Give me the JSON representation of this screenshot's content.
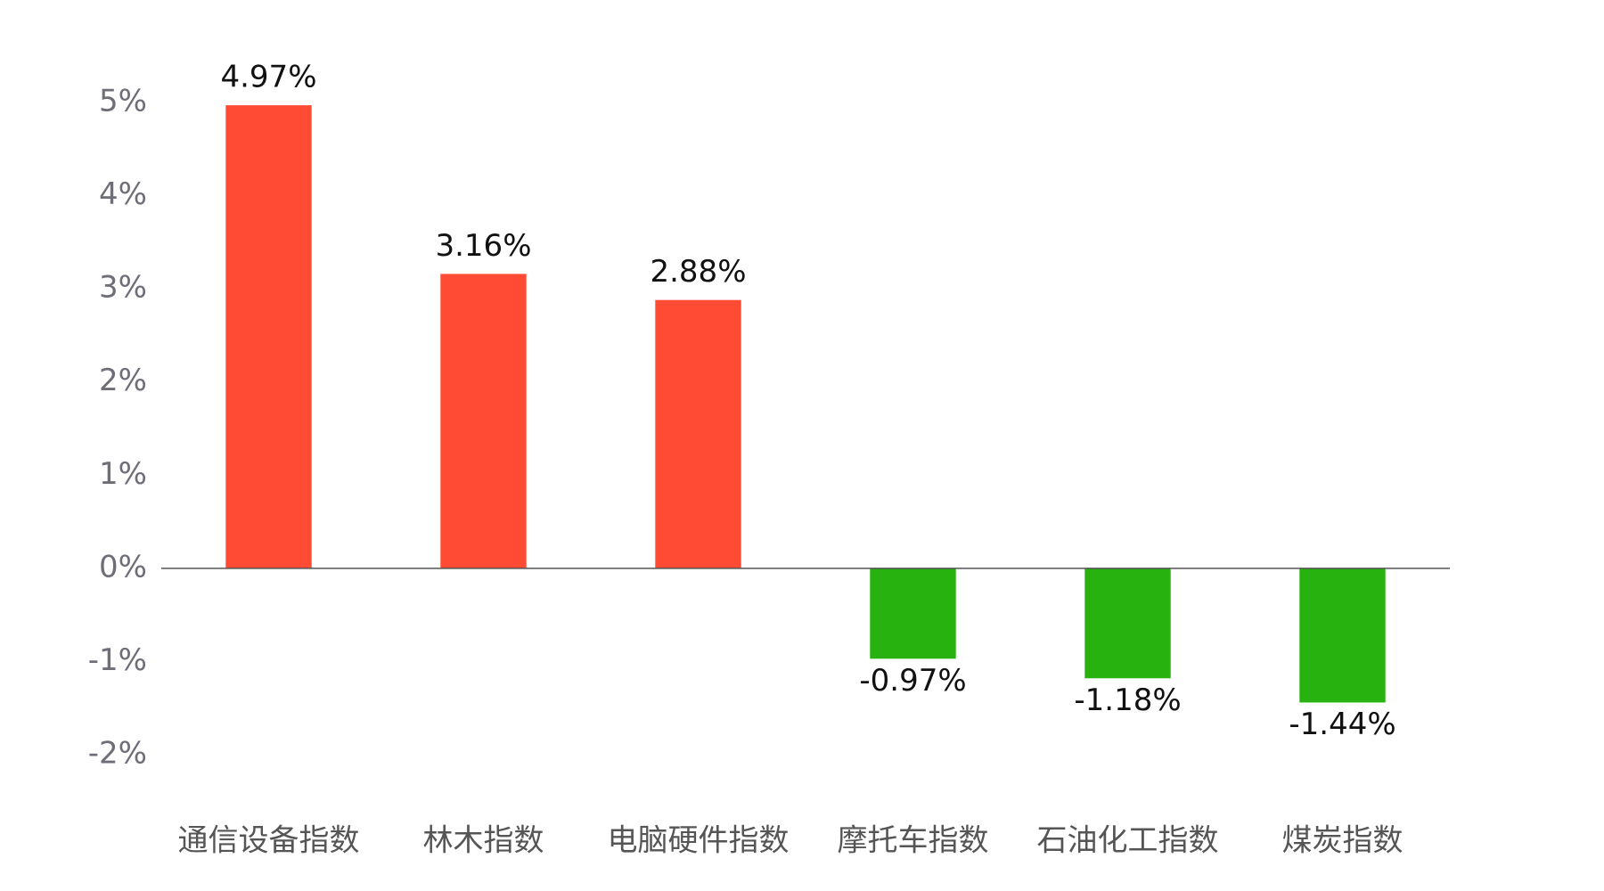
{
  "chart_data": {
    "type": "bar",
    "categories": [
      "通信设备指数",
      "林木指数",
      "电脑硬件指数",
      "摩托车指数",
      "石油化工指数",
      "煤炭指数"
    ],
    "values": [
      4.97,
      3.16,
      2.88,
      -0.97,
      -1.18,
      -1.44
    ],
    "value_labels": [
      "4.97%",
      "3.16%",
      "2.88%",
      "-0.97%",
      "-1.18%",
      "-1.44%"
    ],
    "colors": [
      "#ff4b33",
      "#ff4b33",
      "#ff4b33",
      "#28b20f",
      "#28b20f",
      "#28b20f"
    ],
    "ylim": [
      -2,
      5
    ],
    "yticks": [
      {
        "value": -2,
        "label": "-2%"
      },
      {
        "value": -1,
        "label": "-1%"
      },
      {
        "value": 0,
        "label": "0%"
      },
      {
        "value": 1,
        "label": "1%"
      },
      {
        "value": 2,
        "label": "2%"
      },
      {
        "value": 3,
        "label": "3%"
      },
      {
        "value": 4,
        "label": "4%"
      },
      {
        "value": 5,
        "label": "5%"
      }
    ],
    "grid": false
  }
}
